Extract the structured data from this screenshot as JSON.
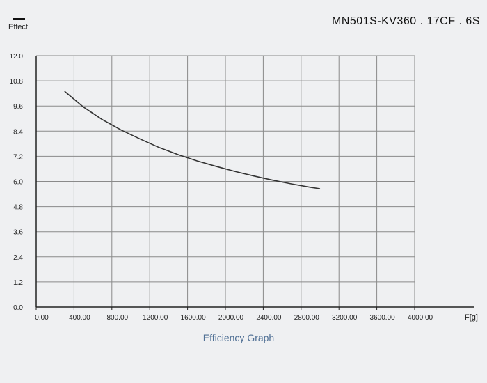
{
  "legend": {
    "label": "Effect",
    "color": "#111111"
  },
  "header": {
    "model": "MN501S-KV360 . 17CF . 6S"
  },
  "caption": "Efficiency Graph",
  "chart_data": {
    "type": "line",
    "title": "",
    "xlabel": "F[g]",
    "ylabel": "",
    "xlim": [
      0,
      4000
    ],
    "ylim": [
      0,
      12
    ],
    "x_ticks": [
      0,
      400,
      800,
      1200,
      1600,
      2000,
      2400,
      2800,
      3200,
      3600,
      4000
    ],
    "x_tick_labels": [
      "0.00",
      "400.00",
      "800.00",
      "1200.00",
      "1600.00",
      "2000.00",
      "2400.00",
      "2800.00",
      "3200.00",
      "3600.00",
      "4000.00"
    ],
    "y_ticks": [
      0,
      1.2,
      2.4,
      3.6,
      4.8,
      6.0,
      7.2,
      8.4,
      9.6,
      10.8,
      12.0
    ],
    "y_tick_labels": [
      "0.0",
      "1.2",
      "2.4",
      "3.6",
      "4.8",
      "6.0",
      "7.2",
      "8.4",
      "9.6",
      "10.8",
      "12.0"
    ],
    "grid": true,
    "series": [
      {
        "name": "Effect",
        "color": "#333333",
        "x": [
          300,
          500,
          700,
          900,
          1100,
          1300,
          1500,
          1700,
          1900,
          2100,
          2300,
          2500,
          2700,
          2900,
          3000
        ],
        "y": [
          10.3,
          9.55,
          8.95,
          8.45,
          8.02,
          7.62,
          7.28,
          6.98,
          6.72,
          6.48,
          6.26,
          6.06,
          5.88,
          5.72,
          5.65
        ]
      }
    ]
  }
}
